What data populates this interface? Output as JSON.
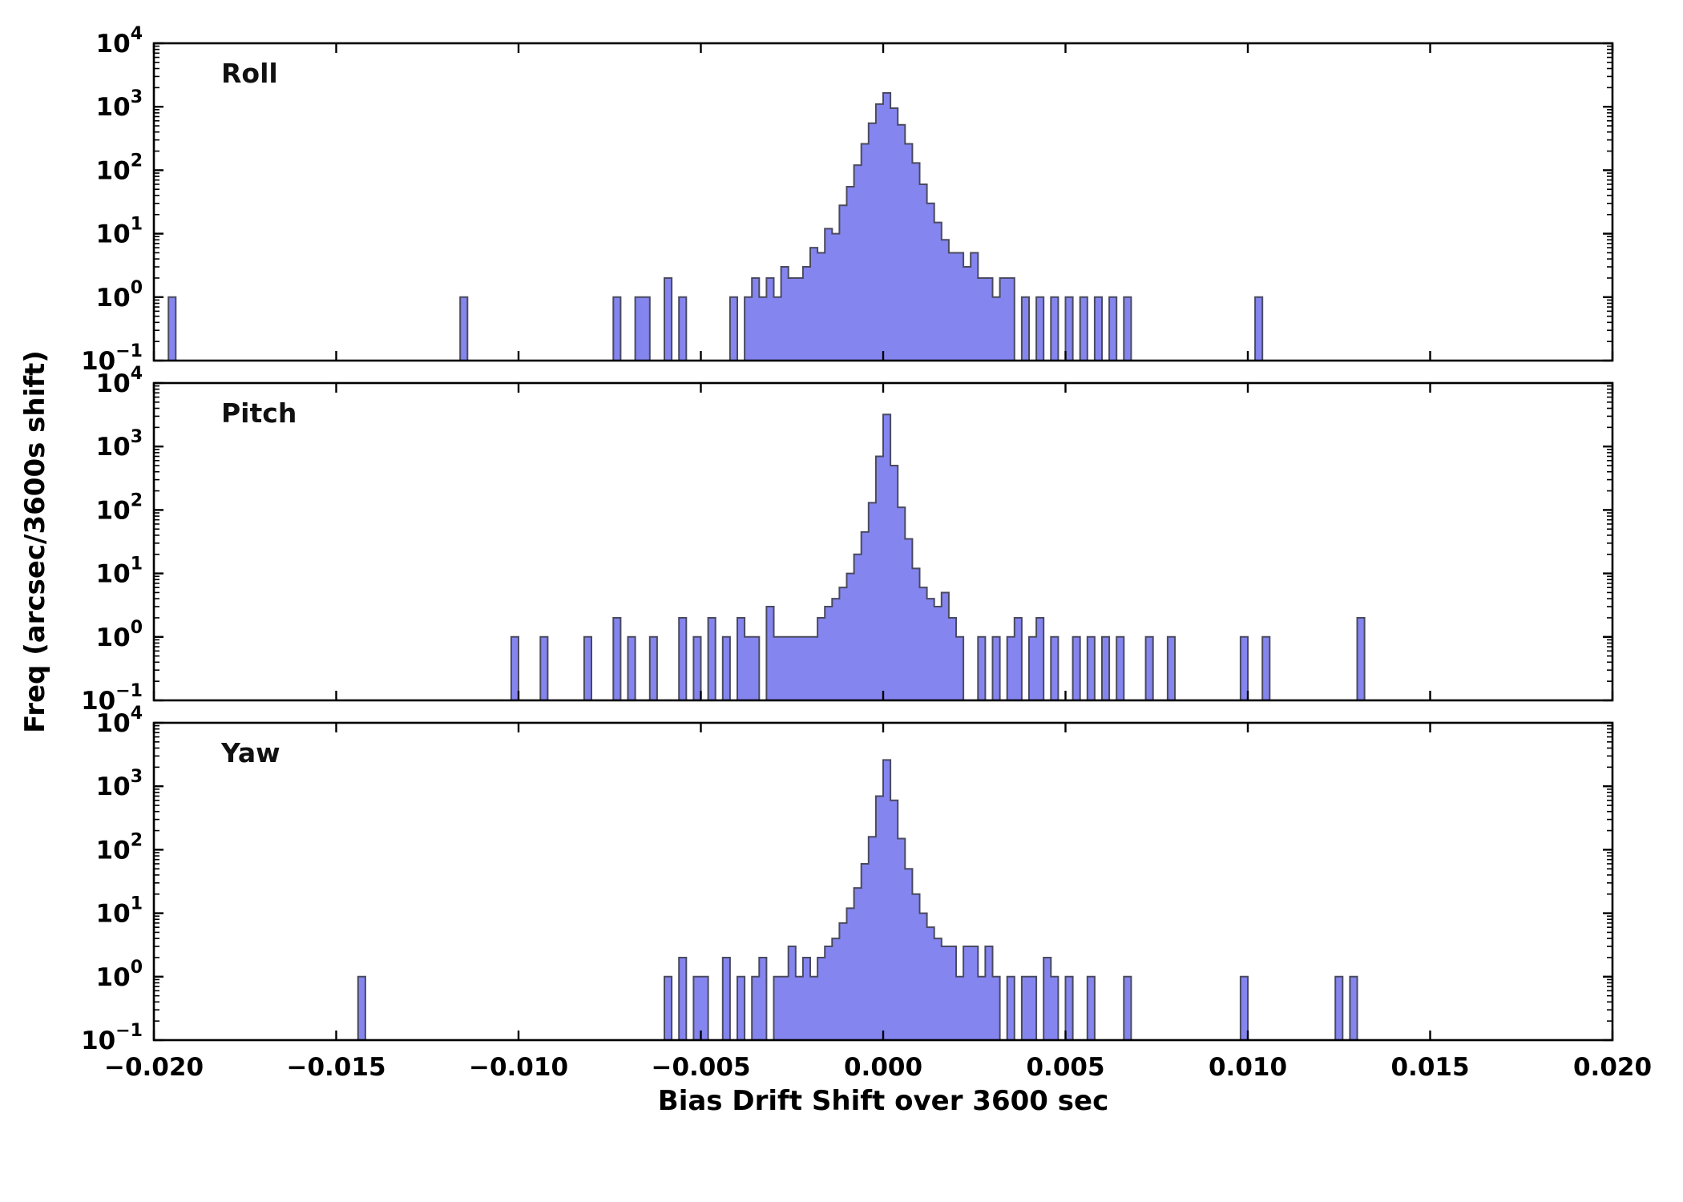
{
  "figure": {
    "xlabel": "Bias Drift Shift over 3600 sec",
    "ylabel": "Freq (arcsec/3600s shift)",
    "bar_fill": "#8585f0",
    "bar_edge": "#4a4a5f",
    "frame_color": "#000000",
    "xlim": [
      -0.02,
      0.02
    ],
    "ylim_log": [
      -1,
      4
    ],
    "x_ticks": [
      -0.02,
      -0.015,
      -0.01,
      -0.005,
      0.0,
      0.005,
      0.01,
      0.015,
      0.02
    ],
    "x_tick_labels": [
      "−0.020",
      "−0.015",
      "−0.010",
      "−0.005",
      "0.000",
      "0.005",
      "0.010",
      "0.015",
      "0.020"
    ],
    "y_tick_exponents": [
      "4",
      "3",
      "2",
      "1",
      "0",
      "−1"
    ]
  },
  "chart_data": [
    {
      "type": "bar",
      "subtype": "histogram-log",
      "title": "Roll",
      "bin_width": 0.0002,
      "bins": [
        [
          -0.0196,
          1
        ],
        [
          -0.0116,
          1
        ],
        [
          -0.0074,
          1
        ],
        [
          -0.0068,
          1
        ],
        [
          -0.0066,
          1
        ],
        [
          -0.006,
          2
        ],
        [
          -0.0056,
          1
        ],
        [
          -0.0042,
          1
        ],
        [
          -0.0038,
          1
        ],
        [
          -0.0036,
          2
        ],
        [
          -0.0034,
          1
        ],
        [
          -0.0032,
          2
        ],
        [
          -0.003,
          1
        ],
        [
          -0.0028,
          3
        ],
        [
          -0.0026,
          2
        ],
        [
          -0.0024,
          2
        ],
        [
          -0.0022,
          3
        ],
        [
          -0.002,
          6
        ],
        [
          -0.0018,
          5
        ],
        [
          -0.0016,
          12
        ],
        [
          -0.0014,
          10
        ],
        [
          -0.0012,
          28
        ],
        [
          -0.001,
          55
        ],
        [
          -0.0008,
          120
        ],
        [
          -0.0006,
          260
        ],
        [
          -0.0004,
          550
        ],
        [
          -0.0002,
          1100
        ],
        [
          0,
          1650
        ],
        [
          0.0002,
          950
        ],
        [
          0.0004,
          520
        ],
        [
          0.0006,
          260
        ],
        [
          0.0008,
          130
        ],
        [
          0.001,
          60
        ],
        [
          0.0012,
          30
        ],
        [
          0.0014,
          15
        ],
        [
          0.0016,
          8
        ],
        [
          0.0018,
          5
        ],
        [
          0.002,
          5
        ],
        [
          0.0022,
          3
        ],
        [
          0.0024,
          5
        ],
        [
          0.0026,
          2
        ],
        [
          0.0028,
          2
        ],
        [
          0.003,
          1
        ],
        [
          0.0032,
          2
        ],
        [
          0.0034,
          2
        ],
        [
          0.0038,
          1
        ],
        [
          0.0042,
          1
        ],
        [
          0.0046,
          1
        ],
        [
          0.005,
          1
        ],
        [
          0.0054,
          1
        ],
        [
          0.0058,
          1
        ],
        [
          0.0062,
          1
        ],
        [
          0.0066,
          1
        ],
        [
          0.0102,
          1
        ]
      ]
    },
    {
      "type": "bar",
      "subtype": "histogram-log",
      "title": "Pitch",
      "bin_width": 0.0002,
      "bins": [
        [
          -0.0102,
          1
        ],
        [
          -0.0094,
          1
        ],
        [
          -0.0082,
          1
        ],
        [
          -0.0074,
          2
        ],
        [
          -0.007,
          1
        ],
        [
          -0.0064,
          1
        ],
        [
          -0.0056,
          2
        ],
        [
          -0.0052,
          1
        ],
        [
          -0.0048,
          2
        ],
        [
          -0.0044,
          1
        ],
        [
          -0.004,
          2
        ],
        [
          -0.0038,
          1
        ],
        [
          -0.0036,
          1
        ],
        [
          -0.0032,
          3
        ],
        [
          -0.003,
          1
        ],
        [
          -0.0028,
          1
        ],
        [
          -0.0026,
          1
        ],
        [
          -0.0024,
          1
        ],
        [
          -0.0022,
          1
        ],
        [
          -0.002,
          1
        ],
        [
          -0.0018,
          2
        ],
        [
          -0.0016,
          3
        ],
        [
          -0.0014,
          4
        ],
        [
          -0.0012,
          6
        ],
        [
          -0.001,
          10
        ],
        [
          -0.0008,
          20
        ],
        [
          -0.0006,
          45
        ],
        [
          -0.0004,
          130
        ],
        [
          -0.0002,
          700
        ],
        [
          0,
          3200
        ],
        [
          0.0002,
          500
        ],
        [
          0.0004,
          110
        ],
        [
          0.0006,
          35
        ],
        [
          0.0008,
          12
        ],
        [
          0.001,
          6
        ],
        [
          0.0012,
          4
        ],
        [
          0.0014,
          3
        ],
        [
          0.0016,
          5
        ],
        [
          0.0018,
          2
        ],
        [
          0.002,
          1
        ],
        [
          0.0026,
          1
        ],
        [
          0.003,
          1
        ],
        [
          0.0034,
          1
        ],
        [
          0.0036,
          2
        ],
        [
          0.004,
          1
        ],
        [
          0.0042,
          2
        ],
        [
          0.0046,
          1
        ],
        [
          0.0052,
          1
        ],
        [
          0.0056,
          1
        ],
        [
          0.006,
          1
        ],
        [
          0.0064,
          1
        ],
        [
          0.0072,
          1
        ],
        [
          0.0078,
          1
        ],
        [
          0.0098,
          1
        ],
        [
          0.0104,
          1
        ],
        [
          0.013,
          2
        ]
      ]
    },
    {
      "type": "bar",
      "subtype": "histogram-log",
      "title": "Yaw",
      "bin_width": 0.0002,
      "bins": [
        [
          -0.0144,
          1
        ],
        [
          -0.006,
          1
        ],
        [
          -0.0056,
          2
        ],
        [
          -0.0052,
          1
        ],
        [
          -0.005,
          1
        ],
        [
          -0.0044,
          2
        ],
        [
          -0.004,
          1
        ],
        [
          -0.0036,
          1
        ],
        [
          -0.0034,
          2
        ],
        [
          -0.003,
          1
        ],
        [
          -0.0028,
          1
        ],
        [
          -0.0026,
          3
        ],
        [
          -0.0024,
          1
        ],
        [
          -0.0022,
          2
        ],
        [
          -0.002,
          1
        ],
        [
          -0.0018,
          2
        ],
        [
          -0.0016,
          3
        ],
        [
          -0.0014,
          4
        ],
        [
          -0.0012,
          7
        ],
        [
          -0.001,
          12
        ],
        [
          -0.0008,
          25
        ],
        [
          -0.0006,
          60
        ],
        [
          -0.0004,
          160
        ],
        [
          -0.0002,
          700
        ],
        [
          0,
          2600
        ],
        [
          0.0002,
          600
        ],
        [
          0.0004,
          150
        ],
        [
          0.0006,
          50
        ],
        [
          0.0008,
          20
        ],
        [
          0.001,
          10
        ],
        [
          0.0012,
          6
        ],
        [
          0.0014,
          4
        ],
        [
          0.0016,
          3
        ],
        [
          0.0018,
          3
        ],
        [
          0.002,
          1
        ],
        [
          0.0022,
          3
        ],
        [
          0.0024,
          3
        ],
        [
          0.0026,
          1
        ],
        [
          0.0028,
          3
        ],
        [
          0.003,
          1
        ],
        [
          0.0034,
          1
        ],
        [
          0.0038,
          1
        ],
        [
          0.004,
          1
        ],
        [
          0.0044,
          2
        ],
        [
          0.0046,
          1
        ],
        [
          0.005,
          1
        ],
        [
          0.0056,
          1
        ],
        [
          0.0066,
          1
        ],
        [
          0.0098,
          1
        ],
        [
          0.0124,
          1
        ],
        [
          0.0128,
          1
        ]
      ]
    }
  ]
}
